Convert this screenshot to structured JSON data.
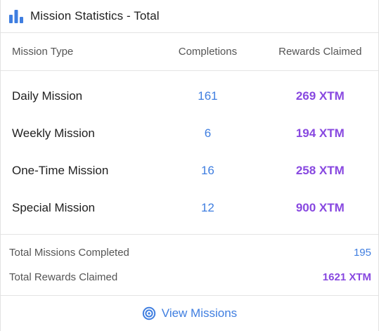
{
  "header": {
    "icon": "bar-chart-icon",
    "title": "Mission Statistics - Total"
  },
  "columns": {
    "type": "Mission Type",
    "completions": "Completions",
    "rewards": "Rewards Claimed"
  },
  "missions": [
    {
      "type": "Daily Mission",
      "completions": "161",
      "rewards": "269 XTM"
    },
    {
      "type": "Weekly Mission",
      "completions": "6",
      "rewards": "194 XTM"
    },
    {
      "type": "One-Time Mission",
      "completions": "16",
      "rewards": "258 XTM"
    },
    {
      "type": "Special Mission",
      "completions": "12",
      "rewards": "900 XTM"
    }
  ],
  "totals": {
    "missions_label": "Total Missions Completed",
    "missions_value": "195",
    "rewards_label": "Total Rewards Claimed",
    "rewards_value": "1621 XTM"
  },
  "footer": {
    "icon": "target-icon",
    "link_label": "View Missions"
  },
  "colors": {
    "blue": "#3f7ee0",
    "purple": "#8848e0"
  }
}
